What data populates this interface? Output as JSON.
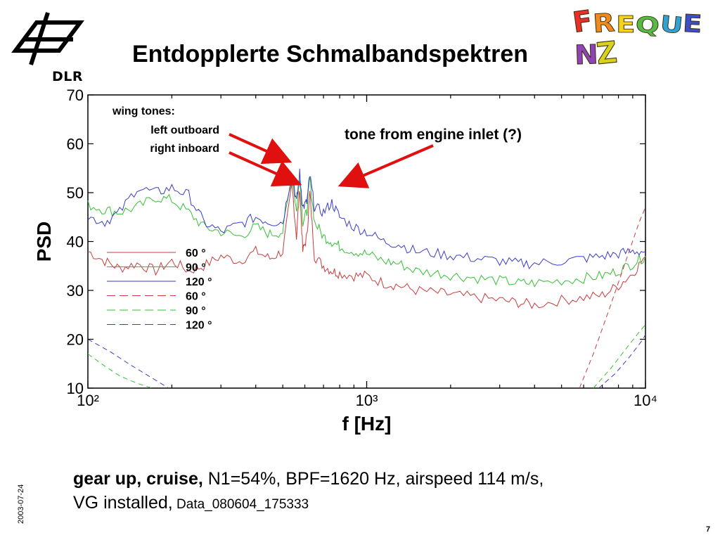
{
  "slide": {
    "title": "Entdopplerte Schmalbandspektren",
    "logo_text": "DLR",
    "wordart": "FREQUENZ",
    "wordart_colors": [
      "#e8302a",
      "#f08a1c",
      "#f5d21c",
      "#57b947",
      "#2fa3d8",
      "#3c4fc4",
      "#8e43b6",
      "#d8d21c"
    ],
    "caption": {
      "line1_bold": "gear up, cruise,",
      "line1_rest": " N1=54%, BPF=1620 Hz, airspeed 114 m/s,",
      "line2_text": "VG installed,",
      "line2_small": " Data_080604_175333"
    },
    "date": "2003-07-24",
    "page_number": "7"
  },
  "chart_data": {
    "type": "line",
    "xscale": "log",
    "xlim": [
      100,
      10000
    ],
    "ylim": [
      10,
      70
    ],
    "yticks": [
      10,
      20,
      30,
      40,
      50,
      60,
      70
    ],
    "xtick_labels": [
      "10²",
      "10³",
      "10⁴"
    ],
    "xlabel": "f [Hz]",
    "ylabel": "PSD",
    "grid": false,
    "legend_position": "center-left",
    "colors": {
      "red": "#c83c3c",
      "green": "#34c034",
      "blue": "#3a3ec8"
    },
    "annotations": {
      "wing_tones_title": "wing tones:",
      "wing_tones_left": "left outboard",
      "wing_tones_right": "right inboard",
      "engine": "tone from engine inlet (?)",
      "arrow_color": "#e01010"
    },
    "series": [
      {
        "name": "60 °",
        "color": "red",
        "dash": "solid",
        "x": [
          100,
          115,
          130,
          150,
          175,
          200,
          230,
          260,
          300,
          350,
          400,
          450,
          500,
          540,
          560,
          575,
          590,
          610,
          625,
          650,
          700,
          750,
          800,
          900,
          1000,
          1150,
          1300,
          1500,
          1800,
          2100,
          2500,
          3000,
          3500,
          4000,
          5000,
          6000,
          7000,
          8000,
          9000,
          10000
        ],
        "y": [
          38,
          36,
          34.5,
          35.5,
          34,
          36,
          34,
          35,
          37,
          36,
          38,
          36.5,
          38,
          51.5,
          41,
          51,
          38,
          41,
          50,
          37,
          35,
          34,
          33.5,
          33,
          33,
          31.5,
          31,
          30,
          29.5,
          29,
          28.5,
          28,
          27.5,
          27,
          28,
          28.5,
          29,
          31,
          33.5,
          37
        ]
      },
      {
        "name": "90 °",
        "color": "green",
        "dash": "solid",
        "x": [
          100,
          115,
          130,
          150,
          175,
          200,
          230,
          260,
          300,
          350,
          400,
          450,
          500,
          540,
          560,
          575,
          590,
          610,
          625,
          650,
          700,
          750,
          800,
          900,
          1000,
          1150,
          1300,
          1500,
          1800,
          2100,
          2500,
          3000,
          3500,
          4000,
          5000,
          6000,
          7000,
          8000,
          9000,
          10000
        ],
        "y": [
          47.5,
          46.5,
          46,
          47,
          49,
          48.5,
          46,
          43,
          42,
          41,
          43,
          41.5,
          42,
          54,
          46,
          53.5,
          44,
          46,
          53,
          44,
          41,
          40,
          39,
          38,
          37.5,
          36,
          35.5,
          34,
          33.5,
          33,
          32.5,
          32,
          31.5,
          31.5,
          32,
          32.5,
          33,
          34,
          35.5,
          37
        ]
      },
      {
        "name": "120 °",
        "color": "blue",
        "dash": "solid",
        "x": [
          100,
          115,
          130,
          150,
          175,
          200,
          230,
          260,
          300,
          350,
          400,
          450,
          500,
          540,
          560,
          575,
          590,
          610,
          625,
          650,
          700,
          750,
          800,
          900,
          1000,
          1150,
          1300,
          1500,
          1800,
          2100,
          2500,
          3000,
          3500,
          4000,
          5000,
          6000,
          7000,
          8000,
          9000,
          10000
        ],
        "y": [
          45,
          44,
          46,
          51,
          50,
          51,
          49.5,
          44,
          42,
          43.5,
          45,
          44,
          44,
          54.5,
          48,
          54,
          47,
          48,
          53.5,
          47,
          46,
          48,
          45,
          43,
          42,
          40,
          39.5,
          38,
          37.5,
          37,
          36.5,
          36,
          35.5,
          35.5,
          36,
          36.5,
          37,
          37.5,
          38,
          38
        ]
      },
      {
        "name": "60 °",
        "color": "red",
        "dash": "dashed",
        "x": [
          5800,
          6500,
          7500,
          8500,
          9500,
          10000
        ],
        "y": [
          10,
          17,
          27,
          36,
          44,
          47
        ]
      },
      {
        "name": "90 °",
        "color": "green",
        "dash": "dashed",
        "x": [
          100,
          115,
          130,
          150,
          170,
          6500,
          7500,
          8500,
          9500,
          10000
        ],
        "y": [
          17,
          14.5,
          12.5,
          11,
          10,
          10,
          14,
          18,
          21.5,
          23
        ]
      },
      {
        "name": "120 °",
        "color": "blue",
        "dash": "dashed",
        "x": [
          100,
          120,
          140,
          165,
          195,
          6800,
          7800,
          8800,
          9800,
          10000
        ],
        "y": [
          20,
          17.5,
          15,
          12.5,
          10,
          10,
          13,
          16.5,
          20,
          21
        ]
      }
    ]
  }
}
